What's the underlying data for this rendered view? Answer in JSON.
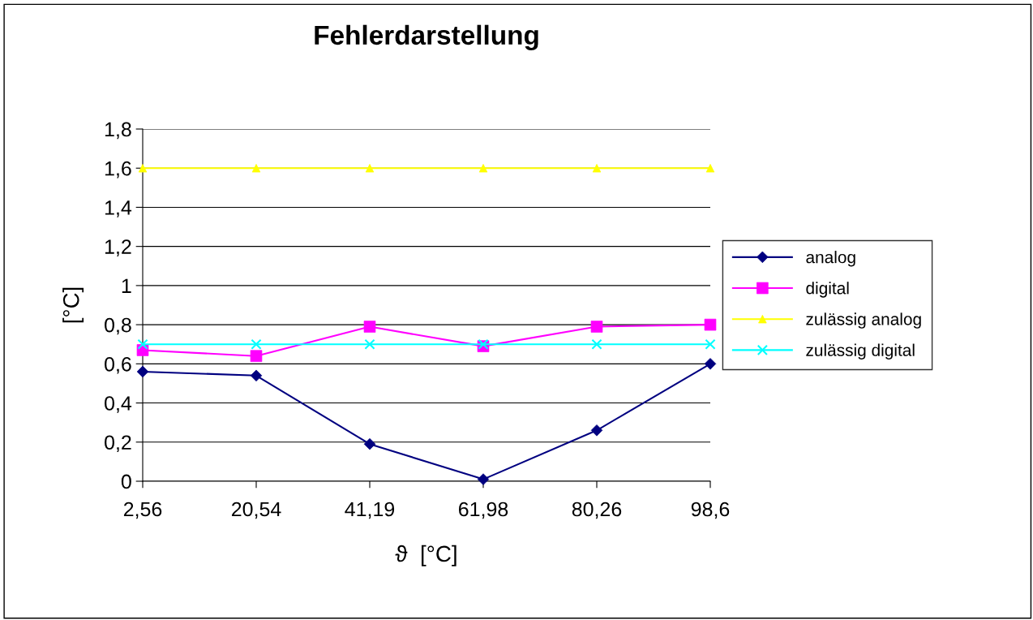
{
  "chart_data": {
    "type": "line",
    "title": "Fehlerdarstellung",
    "xlabel": "ϑ  [°C]",
    "ylabel": "[°C]",
    "categories": [
      "2,56",
      "20,54",
      "41,19",
      "61,98",
      "80,26",
      "98,6"
    ],
    "series": [
      {
        "name": "analog",
        "color": "#000080",
        "marker": "diamond",
        "values": [
          0.56,
          0.54,
          0.19,
          0.01,
          0.26,
          0.6
        ]
      },
      {
        "name": "digital",
        "color": "#ff00ff",
        "marker": "square",
        "values": [
          0.67,
          0.64,
          0.79,
          0.69,
          0.79,
          0.8
        ]
      },
      {
        "name": "zulässig analog",
        "color": "#ffff00",
        "marker": "triangle",
        "values": [
          1.6,
          1.6,
          1.6,
          1.6,
          1.6,
          1.6
        ]
      },
      {
        "name": "zulässig digital",
        "color": "#00ffff",
        "marker": "cross",
        "values": [
          0.7,
          0.7,
          0.7,
          0.7,
          0.7,
          0.7
        ]
      }
    ],
    "ylim": [
      0,
      1.8
    ],
    "yticks": [
      0,
      {
        "value": 0.2,
        "label": "0,2"
      },
      {
        "value": 0.4,
        "label": "0,4"
      },
      {
        "value": 0.6,
        "label": "0,6"
      },
      {
        "value": 0.8,
        "label": "0,8"
      },
      1,
      {
        "value": 1.2,
        "label": "1,2"
      },
      {
        "value": 1.4,
        "label": "1,4"
      },
      {
        "value": 1.6,
        "label": "1,6"
      },
      {
        "value": 1.8,
        "label": "1,8"
      }
    ],
    "grid": "y",
    "legend": "right"
  }
}
